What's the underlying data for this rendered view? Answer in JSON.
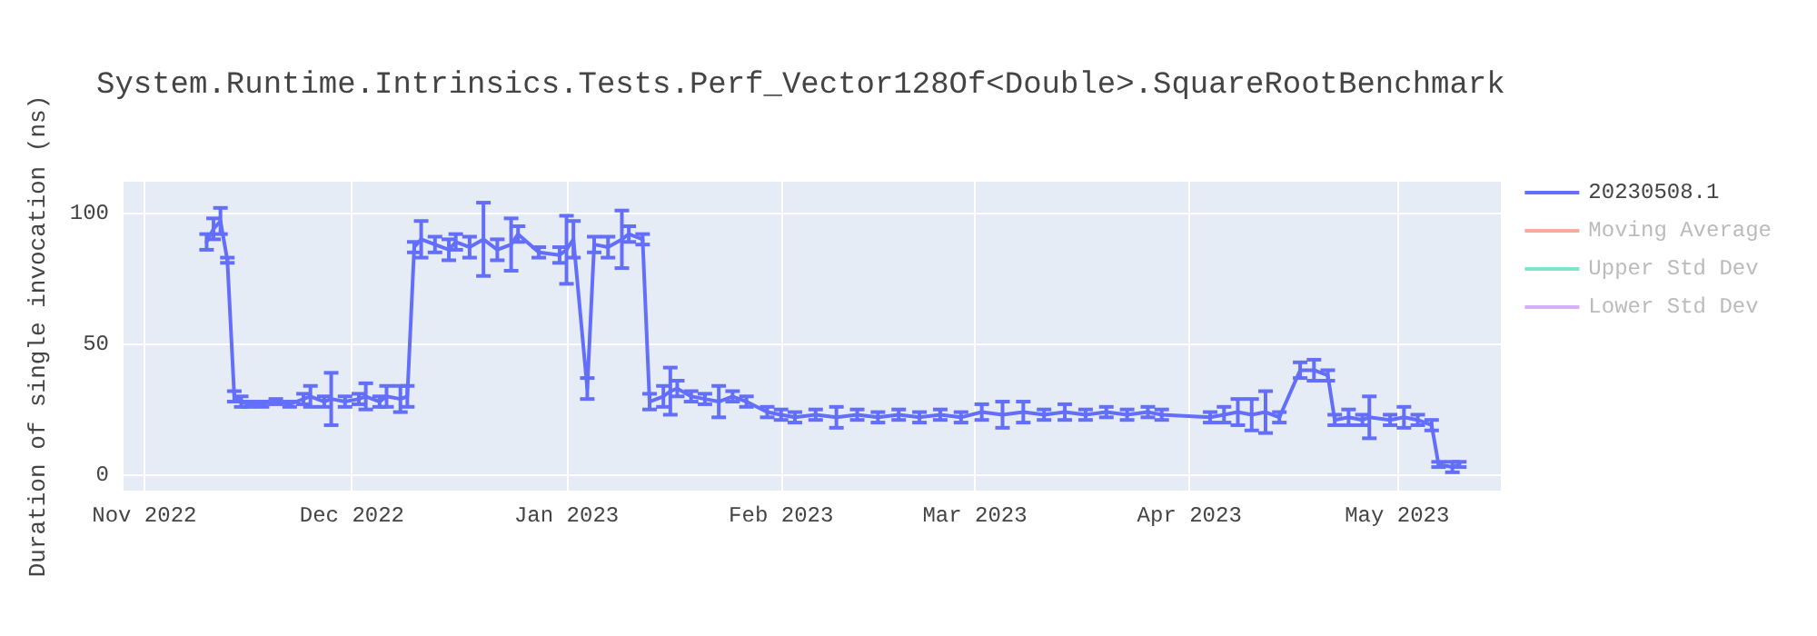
{
  "chart_data": {
    "type": "line",
    "title": "System.Runtime.Intrinsics.Tests.Perf_Vector128Of<Double>.SquareRootBenchmark",
    "ylabel": "Duration of single invocation (ns)",
    "x": [
      "2022-11-10",
      "2022-11-11",
      "2022-11-12",
      "2022-11-13",
      "2022-11-14",
      "2022-11-15",
      "2022-11-16",
      "2022-11-18",
      "2022-11-20",
      "2022-11-22",
      "2022-11-24",
      "2022-11-25",
      "2022-11-27",
      "2022-11-28",
      "2022-11-30",
      "2022-12-02",
      "2022-12-03",
      "2022-12-05",
      "2022-12-06",
      "2022-12-08",
      "2022-12-09",
      "2022-12-10",
      "2022-12-11",
      "2022-12-13",
      "2022-12-15",
      "2022-12-16",
      "2022-12-18",
      "2022-12-20",
      "2022-12-22",
      "2022-12-24",
      "2022-12-25",
      "2022-12-28",
      "2022-12-31",
      "2023-01-01",
      "2023-01-02",
      "2023-01-04",
      "2023-01-05",
      "2023-01-07",
      "2023-01-09",
      "2023-01-10",
      "2023-01-12",
      "2023-01-13",
      "2023-01-15",
      "2023-01-16",
      "2023-01-17",
      "2023-01-19",
      "2023-01-21",
      "2023-01-23",
      "2023-01-25",
      "2023-01-27",
      "2023-01-30",
      "2023-02-01",
      "2023-02-03",
      "2023-02-06",
      "2023-02-09",
      "2023-02-12",
      "2023-02-15",
      "2023-02-18",
      "2023-02-21",
      "2023-02-24",
      "2023-02-27",
      "2023-03-02",
      "2023-03-05",
      "2023-03-08",
      "2023-03-11",
      "2023-03-14",
      "2023-03-17",
      "2023-03-20",
      "2023-03-23",
      "2023-03-26",
      "2023-03-28",
      "2023-04-04",
      "2023-04-06",
      "2023-04-08",
      "2023-04-10",
      "2023-04-12",
      "2023-04-14",
      "2023-04-17",
      "2023-04-19",
      "2023-04-21",
      "2023-04-22",
      "2023-04-24",
      "2023-04-26",
      "2023-04-27",
      "2023-04-30",
      "2023-05-02",
      "2023-05-04",
      "2023-05-06",
      "2023-05-07",
      "2023-05-09",
      "2023-05-10"
    ],
    "series": [
      {
        "name": "20230508.1",
        "color": "#636efa",
        "values": [
          89,
          94,
          97,
          82,
          30,
          28,
          27,
          27,
          28,
          27,
          29,
          30,
          28,
          29,
          28,
          29,
          30,
          28,
          30,
          29,
          30,
          87,
          90,
          88,
          86,
          89,
          87,
          90,
          86,
          88,
          92,
          85,
          84,
          86,
          90,
          33,
          88,
          87,
          90,
          92,
          90,
          28,
          30,
          32,
          33,
          30,
          29,
          28,
          30,
          28,
          24,
          23,
          22,
          23,
          22,
          23,
          22,
          23,
          22,
          23,
          22,
          24,
          23,
          24,
          23,
          24,
          23,
          24,
          23,
          24,
          23,
          22,
          23,
          24,
          23,
          24,
          22,
          40,
          40,
          38,
          21,
          22,
          21,
          22,
          21,
          22,
          21,
          19,
          4,
          3,
          4
        ],
        "errors": [
          3,
          4,
          5,
          1,
          2,
          2,
          1,
          1,
          1,
          1,
          2,
          4,
          2,
          10,
          2,
          2,
          5,
          2,
          4,
          5,
          4,
          2,
          7,
          3,
          4,
          3,
          4,
          14,
          4,
          10,
          3,
          2,
          3,
          13,
          7,
          4,
          3,
          4,
          11,
          3,
          2,
          3,
          4,
          9,
          3,
          2,
          2,
          6,
          2,
          2,
          2,
          2,
          2,
          2,
          4,
          2,
          2,
          2,
          2,
          2,
          2,
          3,
          5,
          4,
          2,
          3,
          2,
          2,
          2,
          2,
          2,
          2,
          3,
          5,
          6,
          8,
          2,
          3,
          4,
          2,
          2,
          3,
          2,
          8,
          2,
          4,
          2,
          2,
          1,
          2,
          1
        ]
      },
      {
        "name": "Moving Average",
        "color": "#ef553b",
        "values": [
          null,
          null,
          null,
          null,
          null,
          null,
          null,
          null,
          null,
          null,
          null,
          null,
          null,
          null,
          null,
          null,
          null,
          null,
          null,
          null,
          null,
          null,
          null,
          null,
          null,
          null,
          null,
          null,
          null,
          null,
          null,
          null,
          null,
          null,
          null,
          null,
          null,
          null,
          null,
          null,
          null,
          null,
          null,
          null,
          null,
          null,
          null,
          null,
          null,
          null,
          null,
          null,
          null,
          null,
          null,
          null,
          null,
          null,
          null,
          null,
          null,
          null,
          null,
          null,
          null,
          null,
          null,
          null,
          null,
          null,
          null,
          null,
          null,
          null,
          null,
          null,
          null,
          null,
          null,
          null,
          null,
          null,
          null,
          null,
          null,
          null,
          null,
          null,
          null,
          null,
          null
        ]
      },
      {
        "name": "Upper Std Dev",
        "color": "#00cc96",
        "values": [
          null,
          null,
          null,
          null,
          null,
          null,
          null,
          null,
          null,
          null,
          null,
          null,
          null,
          null,
          null,
          null,
          null,
          null,
          null,
          null,
          null,
          null,
          null,
          null,
          null,
          null,
          null,
          null,
          null,
          null,
          null,
          null,
          null,
          null,
          null,
          null,
          null,
          null,
          null,
          null,
          null,
          null,
          null,
          null,
          null,
          null,
          null,
          null,
          null,
          null,
          null,
          null,
          null,
          null,
          null,
          null,
          null,
          null,
          null,
          null,
          null,
          null,
          null,
          null,
          null,
          null,
          null,
          null,
          null,
          null,
          null,
          null,
          null,
          null,
          null,
          null,
          null,
          null,
          null,
          null,
          null,
          null,
          null,
          null,
          null,
          null,
          null,
          null,
          null,
          null,
          null
        ]
      },
      {
        "name": "Lower Std Dev",
        "color": "#ab63fa",
        "values": [
          null,
          null,
          null,
          null,
          null,
          null,
          null,
          null,
          null,
          null,
          null,
          null,
          null,
          null,
          null,
          null,
          null,
          null,
          null,
          null,
          null,
          null,
          null,
          null,
          null,
          null,
          null,
          null,
          null,
          null,
          null,
          null,
          null,
          null,
          null,
          null,
          null,
          null,
          null,
          null,
          null,
          null,
          null,
          null,
          null,
          null,
          null,
          null,
          null,
          null,
          null,
          null,
          null,
          null,
          null,
          null,
          null,
          null,
          null,
          null,
          null,
          null,
          null,
          null,
          null,
          null,
          null,
          null,
          null,
          null,
          null,
          null,
          null,
          null,
          null,
          null,
          null,
          null,
          null,
          null,
          null,
          null,
          null,
          null,
          null,
          null,
          null,
          null,
          null,
          null,
          null
        ]
      }
    ],
    "xlim": [
      "2022-10-29",
      "2023-05-16"
    ],
    "xticks": [
      {
        "value": "2022-11",
        "label": "Nov 2022"
      },
      {
        "value": "2022-12",
        "label": "Dec 2022"
      },
      {
        "value": "2023-01",
        "label": "Jan 2023"
      },
      {
        "value": "2023-02",
        "label": "Feb 2023"
      },
      {
        "value": "2023-03",
        "label": "Mar 2023"
      },
      {
        "value": "2023-04",
        "label": "Apr 2023"
      },
      {
        "value": "2023-05",
        "label": "May 2023"
      }
    ],
    "ylim": [
      -6,
      112
    ],
    "yticks": [
      0,
      50,
      100
    ],
    "grid": true,
    "legend": "top right",
    "marker": "none",
    "line_style": "solid"
  }
}
